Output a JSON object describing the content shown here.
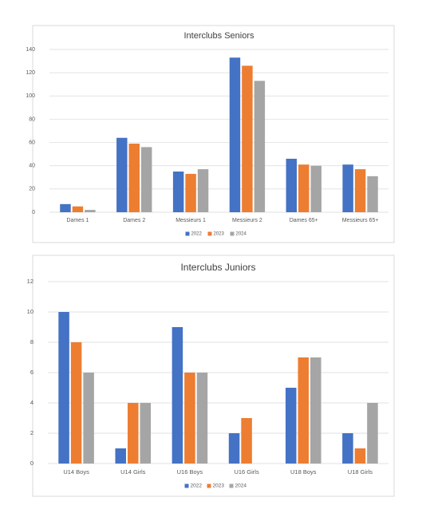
{
  "chart_data": [
    {
      "type": "bar",
      "title": "Interclubs Seniors",
      "categories": [
        "Dames 1",
        "Dames 2",
        "Messieurs 1",
        "Messieurs 2",
        "Dames 65+",
        "Messieurs 65+"
      ],
      "series": [
        {
          "name": "2022",
          "color": "#4472c4",
          "values": [
            7,
            64,
            35,
            133,
            46,
            41
          ]
        },
        {
          "name": "2023",
          "color": "#ed7d31",
          "values": [
            5,
            59,
            33,
            126,
            41,
            37
          ]
        },
        {
          "name": "2024",
          "color": "#a5a5a5",
          "values": [
            2,
            56,
            37,
            113,
            40,
            31
          ]
        }
      ],
      "ylim": [
        0,
        140
      ],
      "yticks": [
        0,
        20,
        40,
        60,
        80,
        100,
        120,
        140
      ],
      "grid": true,
      "legend": "bottom"
    },
    {
      "type": "bar",
      "title": "Interclubs Juniors",
      "categories": [
        "U14 Boys",
        "U14 Girls",
        "U16 Boys",
        "U16 Girls",
        "U18 Boys",
        "U18 Girls"
      ],
      "series": [
        {
          "name": "2022",
          "color": "#4472c4",
          "values": [
            10,
            1,
            9,
            2,
            5,
            2
          ]
        },
        {
          "name": "2023",
          "color": "#ed7d31",
          "values": [
            8,
            4,
            6,
            3,
            7,
            1
          ]
        },
        {
          "name": "2024",
          "color": "#a5a5a5",
          "values": [
            6,
            4,
            6,
            0,
            7,
            4
          ]
        }
      ],
      "ylim": [
        0,
        12
      ],
      "yticks": [
        0,
        2,
        4,
        6,
        8,
        10,
        12
      ],
      "grid": true,
      "legend": "bottom"
    }
  ]
}
